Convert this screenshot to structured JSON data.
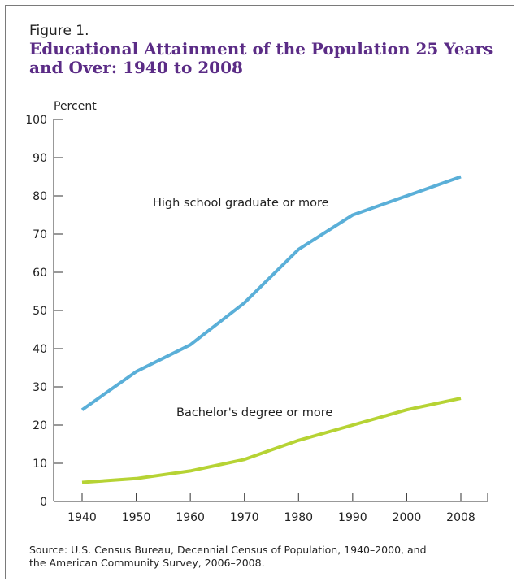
{
  "figure": {
    "label": "Figure 1.",
    "title_line1": "Educational Attainment of the Population 25 Years",
    "title_line2": "and Over: 1940 to 2008",
    "source_line1": "Source: U.S. Census Bureau, Decennial Census of Population, 1940–2000, and",
    "source_line2": "the American Community Survey, 2006–2008."
  },
  "colors": {
    "high_school": "#5aafd8",
    "bachelors": "#b6d334",
    "title": "#5b2c86",
    "axis": "#333333"
  },
  "chart_data": {
    "type": "line",
    "title": "Educational Attainment of the Population 25 Years and Over: 1940 to 2008",
    "ylabel": "Percent",
    "xlabel": "",
    "x": [
      "1940",
      "1950",
      "1960",
      "1970",
      "1980",
      "1990",
      "2000",
      "2008"
    ],
    "ylim": [
      0,
      100
    ],
    "yticks": [
      "0",
      "10",
      "20",
      "30",
      "40",
      "50",
      "60",
      "70",
      "80",
      "90",
      "100"
    ],
    "grid": false,
    "legend": "inline labels",
    "series": [
      {
        "name": "High school graduate or more",
        "color": "#5aafd8",
        "values": [
          24,
          34,
          41,
          52,
          66,
          75,
          80,
          85
        ]
      },
      {
        "name": "Bachelor's degree or more",
        "color": "#b6d334",
        "values": [
          5,
          6,
          8,
          11,
          16,
          20,
          24,
          27
        ]
      }
    ]
  }
}
